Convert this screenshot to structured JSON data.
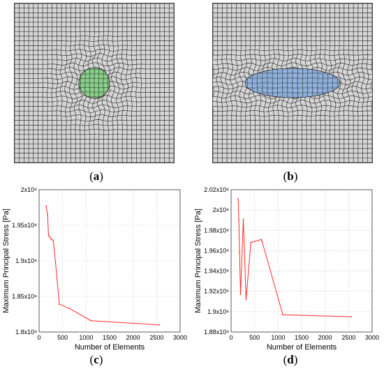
{
  "panels": {
    "a": {
      "label": "a",
      "inclusion_color": "#7fd07f"
    },
    "b": {
      "label": "b",
      "inclusion_color": "#86aee0"
    },
    "c": {
      "label": "c"
    },
    "d": {
      "label": "d"
    }
  },
  "chart_data": [
    {
      "type": "line",
      "panel": "c",
      "xlabel": "Number of Elements",
      "ylabel": "Maximum Principal Stress [Pa]",
      "xlim": [
        0,
        3000
      ],
      "ylim": [
        180000000.0,
        200000000.0
      ],
      "xticks": [
        "0",
        "500",
        "1000",
        "1500",
        "2000",
        "2500",
        "3000"
      ],
      "yticks": [
        "1.8x10⁸",
        "1.85x10⁸",
        "1.9x10⁸",
        "1.95x10⁸",
        "2x10⁸"
      ],
      "grid": true,
      "series": [
        {
          "color": "#ff2a2a",
          "x": [
            150,
            180,
            200,
            230,
            260,
            300,
            350,
            430,
            650,
            1100,
            2560
          ],
          "y": [
            197700000.0,
            196500000.0,
            193600000.0,
            193300000.0,
            193000000.0,
            192900000.0,
            189700000.0,
            183900000.0,
            183300000.0,
            181600000.0,
            181000000.0
          ]
        }
      ]
    },
    {
      "type": "line",
      "panel": "d",
      "xlabel": "Number of Elements",
      "ylabel": "Maximum Principal Stress [Pa]",
      "xlim": [
        0,
        3000
      ],
      "ylim": [
        188000000.0,
        202000000.0
      ],
      "xticks": [
        "0",
        "500",
        "1000",
        "1500",
        "2000",
        "2500",
        "3000"
      ],
      "yticks": [
        "1.88x10⁸",
        "1.9x10⁸",
        "1.92x10⁸",
        "1.94x10⁸",
        "1.96x10⁸",
        "1.98x10⁸",
        "2x10⁸",
        "2.02x10⁸"
      ],
      "grid": true,
      "series": [
        {
          "color": "#ff2a2a",
          "x": [
            150,
            165,
            180,
            200,
            260,
            320,
            420,
            640,
            660,
            1100,
            2560
          ],
          "y": [
            201100000.0,
            199000000.0,
            195800000.0,
            191700000.0,
            199100000.0,
            191200000.0,
            196800000.0,
            197100000.0,
            196900000.0,
            189700000.0,
            189500000.0
          ]
        }
      ]
    }
  ]
}
